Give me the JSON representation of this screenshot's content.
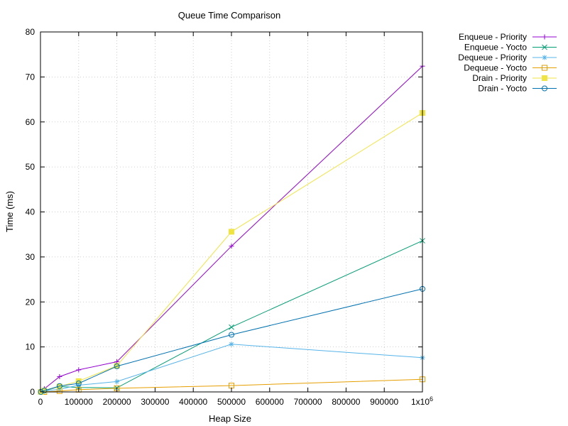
{
  "chart_data": {
    "type": "line",
    "title": "Queue Time Comparison",
    "xlabel": "Heap Size",
    "ylabel": "Time (ms)",
    "xlim": [
      0,
      1000000
    ],
    "ylim": [
      0,
      80
    ],
    "x_ticks": [
      {
        "value": 0,
        "label": "0"
      },
      {
        "value": 100000,
        "label": "100000"
      },
      {
        "value": 200000,
        "label": "200000"
      },
      {
        "value": 300000,
        "label": "300000"
      },
      {
        "value": 400000,
        "label": "400000"
      },
      {
        "value": 500000,
        "label": "500000"
      },
      {
        "value": 600000,
        "label": "600000"
      },
      {
        "value": 700000,
        "label": "700000"
      },
      {
        "value": 800000,
        "label": "800000"
      },
      {
        "value": 900000,
        "label": "900000"
      }
    ],
    "x_last_tick": {
      "value": 1000000,
      "base": "1x10",
      "exp": "6"
    },
    "y_ticks": [
      {
        "value": 0,
        "label": "0"
      },
      {
        "value": 10,
        "label": "10"
      },
      {
        "value": 20,
        "label": "20"
      },
      {
        "value": 30,
        "label": "30"
      },
      {
        "value": 40,
        "label": "40"
      },
      {
        "value": 50,
        "label": "50"
      },
      {
        "value": 60,
        "label": "60"
      },
      {
        "value": 70,
        "label": "70"
      },
      {
        "value": 80,
        "label": "80"
      }
    ],
    "grid": true,
    "legend_position": "outside-top-right",
    "series": [
      {
        "name": "Enqueue - Priority",
        "color": "#9400d3",
        "marker": "plus",
        "x": [
          1000,
          10000,
          50000,
          100000,
          200000,
          500000,
          1000000
        ],
        "y": [
          0.1,
          0.7,
          3.4,
          4.9,
          6.7,
          32.4,
          72.4
        ]
      },
      {
        "name": "Enqueue - Yocto",
        "color": "#009e73",
        "marker": "cross",
        "x": [
          1000,
          10000,
          50000,
          100000,
          200000,
          500000,
          1000000
        ],
        "y": [
          0.0,
          0.2,
          1.2,
          1.0,
          0.9,
          14.4,
          33.6
        ]
      },
      {
        "name": "Dequeue - Priority",
        "color": "#56b4e9",
        "marker": "star",
        "x": [
          1000,
          10000,
          50000,
          100000,
          200000,
          500000,
          1000000
        ],
        "y": [
          0.0,
          0.2,
          0.6,
          1.5,
          2.3,
          10.6,
          7.6
        ]
      },
      {
        "name": "Dequeue - Yocto",
        "color": "#e69f00",
        "marker": "square-open",
        "x": [
          1000,
          10000,
          50000,
          100000,
          200000,
          500000,
          1000000
        ],
        "y": [
          0.0,
          0.0,
          0.2,
          0.5,
          0.8,
          1.4,
          2.8
        ]
      },
      {
        "name": "Drain - Priority",
        "color": "#f0e442",
        "marker": "square-filled",
        "x": [
          1000,
          10000,
          50000,
          100000,
          200000,
          500000,
          1000000
        ],
        "y": [
          0.0,
          0.3,
          1.2,
          2.4,
          5.8,
          35.6,
          62.0
        ]
      },
      {
        "name": "Drain - Yocto",
        "color": "#0072b2",
        "marker": "circle-open",
        "x": [
          1000,
          10000,
          50000,
          100000,
          200000,
          500000,
          1000000
        ],
        "y": [
          0.0,
          0.3,
          1.3,
          1.9,
          5.7,
          12.7,
          22.9
        ]
      }
    ]
  }
}
